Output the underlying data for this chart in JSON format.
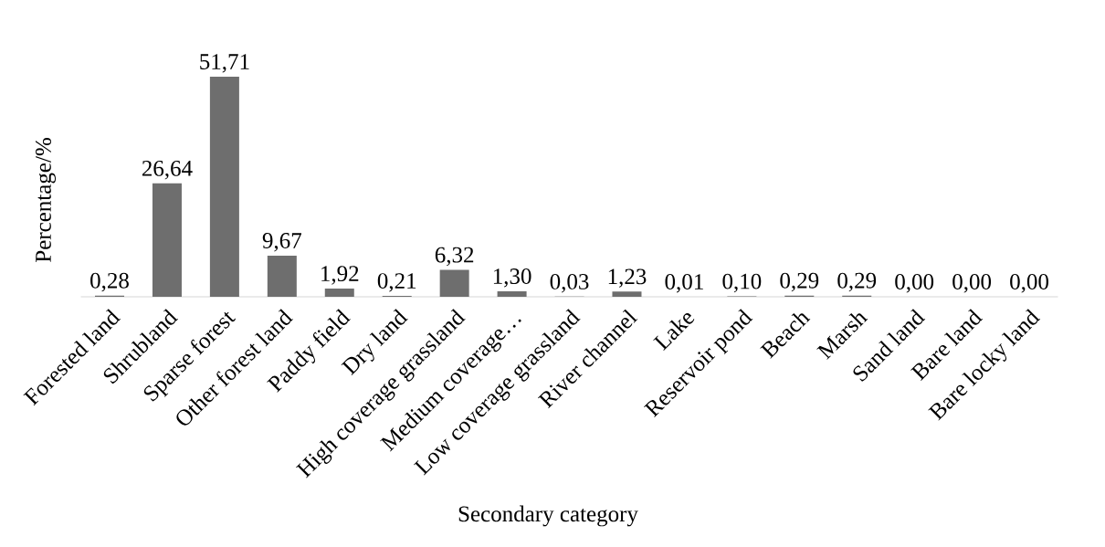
{
  "chart_data": {
    "type": "bar",
    "xlabel": "Secondary category",
    "ylabel": "Percentage/%",
    "color": "#6e6e6e",
    "categories": [
      "Forested land",
      "Shrubland",
      "Sparse forest",
      "Other forest land",
      "Paddy field",
      "Dry land",
      "High coverage grassland",
      "Medium coverage…",
      "Low coverage grassland",
      "River channel",
      "Lake",
      "Reservoir pond",
      "Beach",
      "Marsh",
      "Sand land",
      "Bare land",
      "Bare locky land"
    ],
    "values": [
      0.28,
      26.64,
      51.71,
      9.67,
      1.92,
      0.21,
      6.32,
      1.3,
      0.03,
      1.23,
      0.01,
      0.1,
      0.29,
      0.29,
      0.0,
      0.0,
      0.0
    ],
    "value_labels": [
      "0,28",
      "26,64",
      "51,71",
      "9,67",
      "1,92",
      "0,21",
      "6,32",
      "1,30",
      "0,03",
      "1,23",
      "0,01",
      "0,10",
      "0,29",
      "0,29",
      "0,00",
      "0,00",
      "0,00"
    ]
  }
}
